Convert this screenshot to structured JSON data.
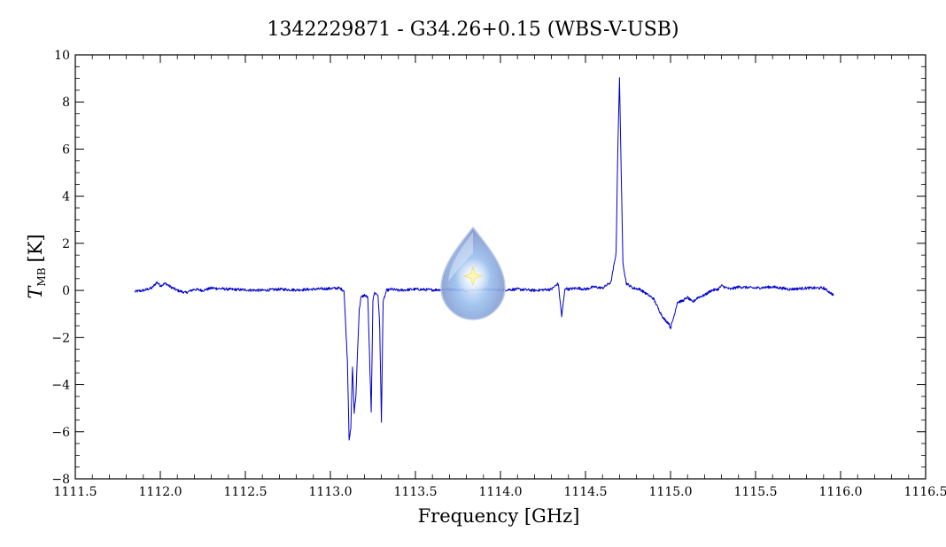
{
  "chart_data": {
    "type": "line",
    "title": "1342229871 - G34.26+0.15 (WBS-V-USB)",
    "xlabel": "Frequency [GHz]",
    "ylabel": {
      "symbol": "T",
      "subscript": "MB",
      "unit": "[K]"
    },
    "xlim": [
      1111.5,
      1116.5
    ],
    "ylim": [
      -8,
      10
    ],
    "x_ticks": [
      1111.5,
      1112.0,
      1112.5,
      1113.0,
      1113.5,
      1114.0,
      1114.5,
      1115.0,
      1115.5,
      1116.0,
      1116.5
    ],
    "x_tick_labels": [
      "1111.5",
      "1112.0",
      "1112.5",
      "1113.0",
      "1113.5",
      "1114.0",
      "1114.5",
      "1115.0",
      "1115.5",
      "1116.0",
      "1116.5"
    ],
    "y_ticks": [
      -8,
      -6,
      -4,
      -2,
      0,
      2,
      4,
      6,
      8,
      10
    ],
    "y_tick_labels": [
      "−8",
      "−6",
      "−4",
      "−2",
      "0",
      "2",
      "4",
      "6",
      "8",
      "10"
    ],
    "grid": false,
    "legend": "none",
    "series": [
      {
        "color": "#0000cc",
        "x": [
          1111.85,
          1111.9,
          1111.95,
          1111.98,
          1112.0,
          1112.03,
          1112.06,
          1112.1,
          1112.15,
          1112.2,
          1112.25,
          1112.3,
          1112.4,
          1112.5,
          1112.6,
          1112.7,
          1112.8,
          1112.9,
          1113.0,
          1113.05,
          1113.08,
          1113.1,
          1113.11,
          1113.12,
          1113.13,
          1113.14,
          1113.15,
          1113.16,
          1113.17,
          1113.18,
          1113.2,
          1113.22,
          1113.24,
          1113.25,
          1113.26,
          1113.28,
          1113.29,
          1113.3,
          1113.31,
          1113.33,
          1113.36,
          1113.4,
          1113.5,
          1113.6,
          1113.7,
          1113.8,
          1113.9,
          1114.0,
          1114.1,
          1114.2,
          1114.3,
          1114.34,
          1114.36,
          1114.38,
          1114.4,
          1114.45,
          1114.5,
          1114.55,
          1114.6,
          1114.65,
          1114.68,
          1114.69,
          1114.7,
          1114.71,
          1114.72,
          1114.74,
          1114.78,
          1114.82,
          1114.86,
          1114.9,
          1114.93,
          1114.96,
          1114.99,
          1115.0,
          1115.02,
          1115.04,
          1115.07,
          1115.1,
          1115.13,
          1115.16,
          1115.2,
          1115.24,
          1115.28,
          1115.3,
          1115.35,
          1115.4,
          1115.5,
          1115.6,
          1115.7,
          1115.8,
          1115.9,
          1115.96
        ],
        "y": [
          -0.05,
          0.0,
          0.1,
          0.35,
          0.2,
          0.3,
          0.15,
          0.0,
          -0.1,
          0.05,
          0.0,
          0.1,
          0.05,
          0.02,
          0.0,
          0.05,
          0.02,
          0.05,
          0.08,
          0.1,
          0.0,
          -3.0,
          -6.3,
          -5.9,
          -3.2,
          -5.2,
          -4.5,
          -2.5,
          -0.8,
          -0.3,
          -0.2,
          -0.3,
          -5.2,
          -0.4,
          -0.1,
          -0.2,
          -1.5,
          -5.6,
          -0.5,
          0.0,
          0.05,
          0.0,
          0.05,
          0.02,
          0.05,
          0.0,
          0.05,
          0.02,
          0.05,
          0.0,
          0.05,
          0.3,
          -1.1,
          0.1,
          0.05,
          0.1,
          0.05,
          0.15,
          0.1,
          0.35,
          1.6,
          6.0,
          9.0,
          5.0,
          1.2,
          0.3,
          0.1,
          0.05,
          -0.15,
          -0.35,
          -0.8,
          -1.2,
          -1.4,
          -1.6,
          -1.1,
          -0.5,
          -0.45,
          -0.3,
          -0.5,
          -0.3,
          -0.2,
          0.0,
          0.05,
          0.2,
          0.05,
          0.15,
          0.1,
          0.15,
          0.05,
          0.1,
          0.1,
          -0.2
        ]
      }
    ]
  },
  "watermark": {
    "icon": "droplet-logo-icon"
  }
}
